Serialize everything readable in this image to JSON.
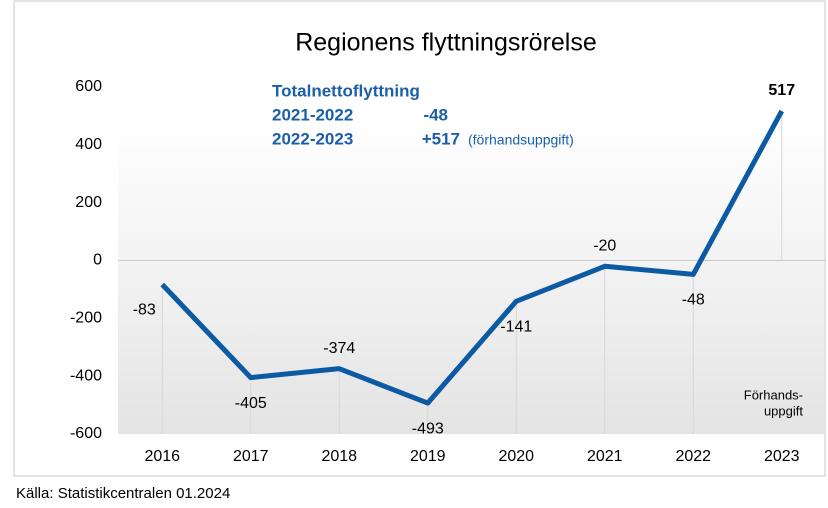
{
  "chart_data": {
    "type": "line",
    "title": "Regionens flyttningsrörelse",
    "categories": [
      "2016",
      "2017",
      "2018",
      "2019",
      "2020",
      "2021",
      "2022",
      "2023"
    ],
    "series": [
      {
        "name": "Nettoflyttning",
        "color": "#0b5aa3",
        "values": [
          -83,
          -405,
          -374,
          -493,
          -141,
          -20,
          -48,
          517
        ]
      }
    ],
    "ylim": [
      -600,
      600
    ],
    "yticks": [
      -600,
      -400,
      -200,
      0,
      200,
      400,
      600
    ],
    "annotations": {
      "heading": "Totalnettoflyttning",
      "rows": [
        {
          "period": "2021-2022",
          "value": "-48"
        },
        {
          "period": "2022-2023",
          "value": "+517",
          "note": "(förhandsuppgift)"
        }
      ],
      "last_note": [
        "Förhands-",
        "uppgift"
      ]
    },
    "source": "Källa: Statistikcentralen 01.2024"
  }
}
